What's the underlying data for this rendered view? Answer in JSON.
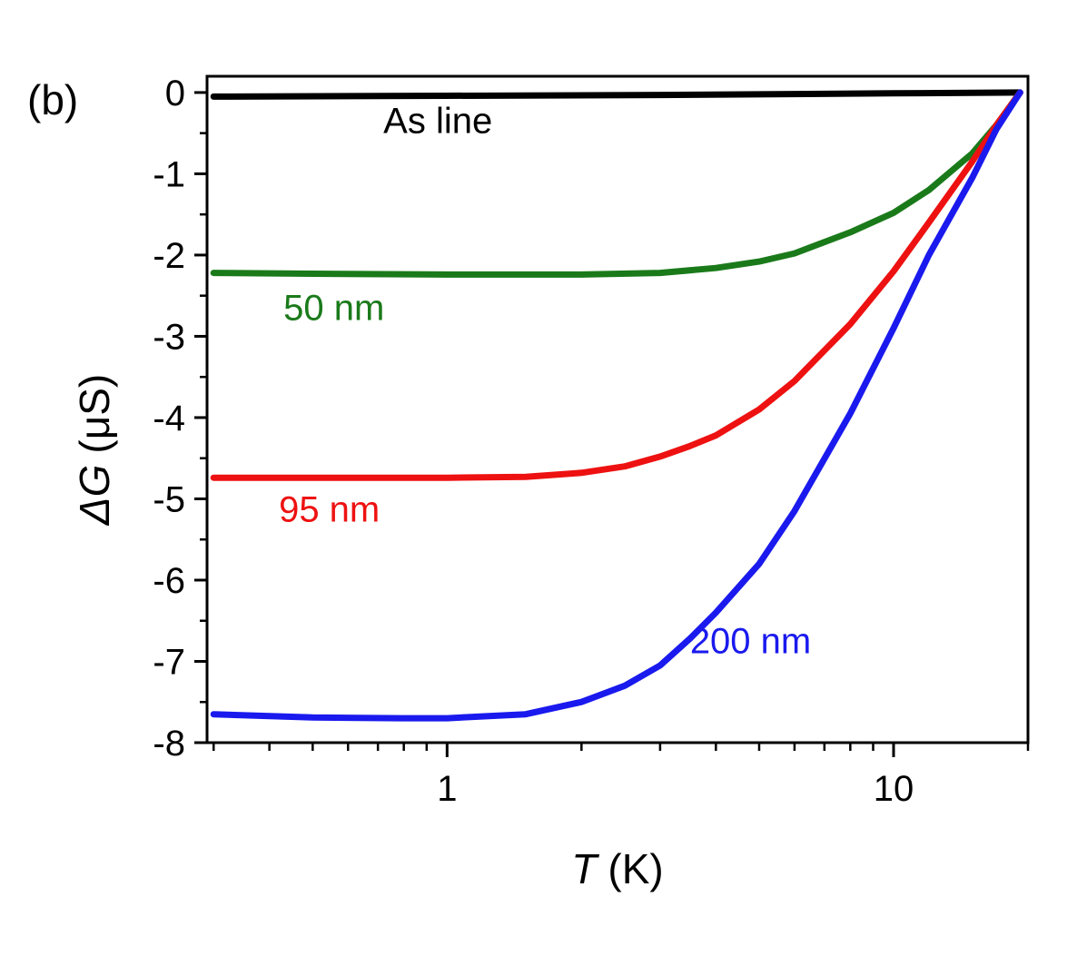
{
  "panel_label": "(b)",
  "chart_data": {
    "type": "line",
    "xscale": "log",
    "xlabel": {
      "symbol": "T",
      "unit": "(K)"
    },
    "ylabel": {
      "symbol": "ΔG",
      "unit": "(μS)"
    },
    "xlim": [
      0.29,
      20
    ],
    "ylim": [
      -8,
      0.2
    ],
    "xticks": [
      {
        "value": 1,
        "label": "1"
      },
      {
        "value": 10,
        "label": "10"
      }
    ],
    "yticks": [
      {
        "value": 0,
        "label": "0"
      },
      {
        "value": -1,
        "label": "-1"
      },
      {
        "value": -2,
        "label": "-2"
      },
      {
        "value": -3,
        "label": "-3"
      },
      {
        "value": -4,
        "label": "-4"
      },
      {
        "value": -5,
        "label": "-5"
      },
      {
        "value": -6,
        "label": "-6"
      },
      {
        "value": -7,
        "label": "-7"
      },
      {
        "value": -8,
        "label": "-8"
      }
    ],
    "series": [
      {
        "name": "As line",
        "color": "#000000",
        "label_anchor": {
          "x": 0.72,
          "y": -0.5
        },
        "points": [
          [
            0.3,
            -0.05
          ],
          [
            1,
            -0.04
          ],
          [
            3,
            -0.03
          ],
          [
            10,
            -0.01
          ],
          [
            19.2,
            0.0
          ]
        ]
      },
      {
        "name": "50 nm",
        "color": "#1a7a1a",
        "label_anchor": {
          "x": 0.43,
          "y": -2.8
        },
        "points": [
          [
            0.3,
            -2.22
          ],
          [
            0.5,
            -2.23
          ],
          [
            1,
            -2.24
          ],
          [
            2,
            -2.24
          ],
          [
            3,
            -2.22
          ],
          [
            4,
            -2.16
          ],
          [
            5,
            -2.08
          ],
          [
            6,
            -1.98
          ],
          [
            8,
            -1.72
          ],
          [
            10,
            -1.48
          ],
          [
            12,
            -1.2
          ],
          [
            15,
            -0.75
          ],
          [
            17,
            -0.4
          ],
          [
            19.2,
            0.0
          ]
        ]
      },
      {
        "name": "95 nm",
        "color": "#ee1111",
        "label_anchor": {
          "x": 0.42,
          "y": -5.28
        },
        "points": [
          [
            0.3,
            -4.74
          ],
          [
            0.5,
            -4.74
          ],
          [
            1,
            -4.74
          ],
          [
            1.5,
            -4.73
          ],
          [
            2,
            -4.68
          ],
          [
            2.5,
            -4.6
          ],
          [
            3,
            -4.48
          ],
          [
            3.5,
            -4.35
          ],
          [
            4,
            -4.22
          ],
          [
            5,
            -3.9
          ],
          [
            6,
            -3.55
          ],
          [
            8,
            -2.85
          ],
          [
            10,
            -2.2
          ],
          [
            12,
            -1.6
          ],
          [
            15,
            -0.85
          ],
          [
            17,
            -0.4
          ],
          [
            19.2,
            0.0
          ]
        ]
      },
      {
        "name": "200 nm",
        "color": "#1a1aee",
        "label_anchor": {
          "x": 3.5,
          "y": -6.9
        },
        "points": [
          [
            0.3,
            -7.65
          ],
          [
            0.5,
            -7.69
          ],
          [
            0.8,
            -7.7
          ],
          [
            1,
            -7.7
          ],
          [
            1.5,
            -7.65
          ],
          [
            2,
            -7.5
          ],
          [
            2.5,
            -7.3
          ],
          [
            3,
            -7.05
          ],
          [
            3.5,
            -6.72
          ],
          [
            4,
            -6.4
          ],
          [
            5,
            -5.8
          ],
          [
            6,
            -5.15
          ],
          [
            8,
            -3.95
          ],
          [
            10,
            -2.9
          ],
          [
            12,
            -2.0
          ],
          [
            15,
            -1.05
          ],
          [
            17,
            -0.45
          ],
          [
            19.2,
            0.0
          ]
        ]
      }
    ]
  }
}
